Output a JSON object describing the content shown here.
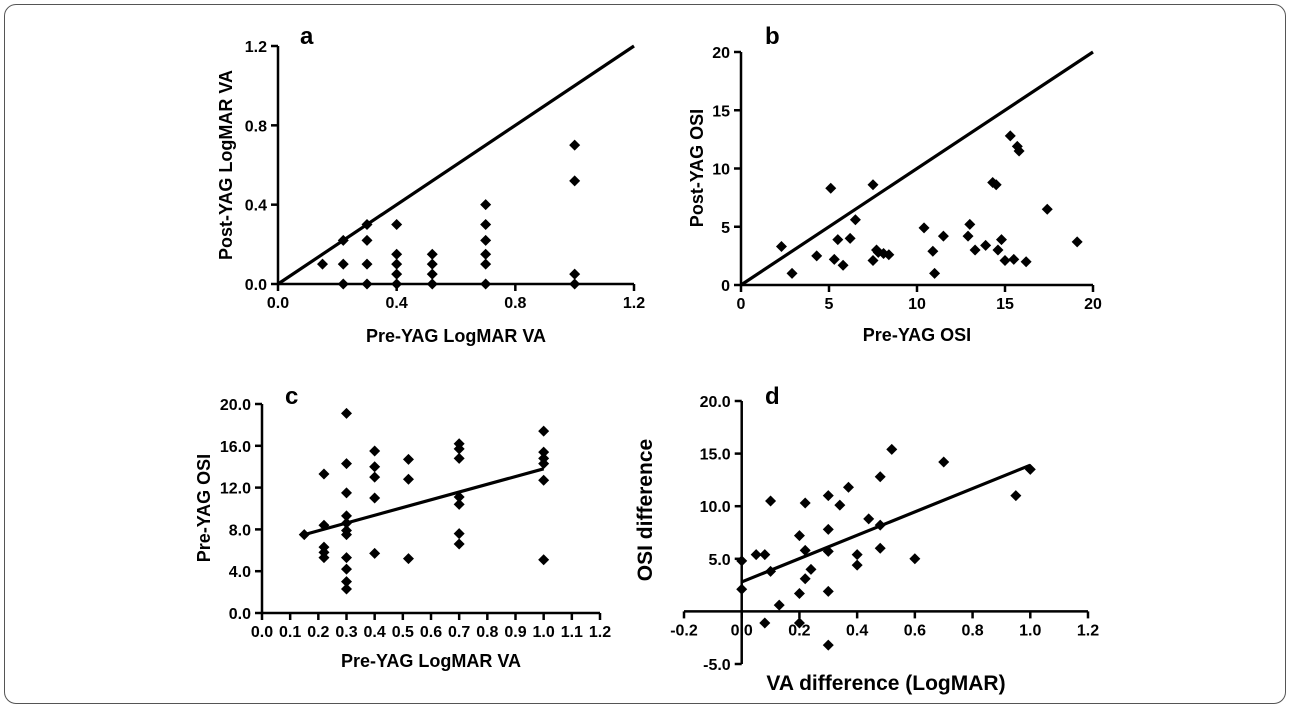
{
  "chart_data": [
    {
      "panel": "a",
      "type": "scatter",
      "xlabel": "Pre-YAG LogMAR VA",
      "ylabel": "Post-YAG LogMAR VA",
      "xlim": [
        0,
        1.2
      ],
      "ylim": [
        0,
        1.2
      ],
      "xticks": [
        "0.0",
        "0.4",
        "0.8",
        "1.2"
      ],
      "yticks": [
        "0.0",
        "0.4",
        "0.8",
        "1.2"
      ],
      "line": [
        [
          0,
          0
        ],
        [
          1.2,
          1.2
        ]
      ],
      "points": [
        [
          0.15,
          0.1
        ],
        [
          0.22,
          0.22
        ],
        [
          0.22,
          0.1
        ],
        [
          0.22,
          0
        ],
        [
          0.3,
          0.3
        ],
        [
          0.3,
          0.22
        ],
        [
          0.3,
          0.1
        ],
        [
          0.3,
          0
        ],
        [
          0.4,
          0.3
        ],
        [
          0.4,
          0.15
        ],
        [
          0.4,
          0.1
        ],
        [
          0.4,
          0.05
        ],
        [
          0.4,
          0
        ],
        [
          0.52,
          0.15
        ],
        [
          0.52,
          0.1
        ],
        [
          0.52,
          0.05
        ],
        [
          0.52,
          0
        ],
        [
          0.7,
          0.4
        ],
        [
          0.7,
          0.3
        ],
        [
          0.7,
          0.22
        ],
        [
          0.7,
          0.15
        ],
        [
          0.7,
          0.1
        ],
        [
          0.7,
          0
        ],
        [
          1.0,
          0.7
        ],
        [
          1.0,
          0.52
        ],
        [
          1.0,
          0.05
        ],
        [
          1.0,
          0
        ]
      ]
    },
    {
      "panel": "b",
      "type": "scatter",
      "xlabel": "Pre-YAG OSI",
      "ylabel": "Post-YAG OSI",
      "xlim": [
        0,
        20
      ],
      "ylim": [
        0,
        20
      ],
      "xticks": [
        "0",
        "5",
        "10",
        "15",
        "20"
      ],
      "yticks": [
        "0",
        "5",
        "10",
        "15",
        "20"
      ],
      "line": [
        [
          0,
          0
        ],
        [
          20,
          20
        ]
      ],
      "points": [
        [
          2.3,
          3.3
        ],
        [
          2.9,
          1.0
        ],
        [
          4.3,
          2.5
        ],
        [
          5.1,
          8.3
        ],
        [
          5.3,
          2.2
        ],
        [
          5.5,
          3.9
        ],
        [
          5.8,
          1.7
        ],
        [
          6.2,
          4.0
        ],
        [
          6.5,
          5.6
        ],
        [
          7.5,
          8.6
        ],
        [
          7.5,
          2.1
        ],
        [
          7.7,
          3.0
        ],
        [
          7.8,
          2.8
        ],
        [
          8.1,
          2.7
        ],
        [
          8.4,
          2.6
        ],
        [
          10.4,
          4.9
        ],
        [
          10.9,
          2.9
        ],
        [
          11.0,
          1.0
        ],
        [
          11.5,
          4.2
        ],
        [
          12.9,
          4.2
        ],
        [
          13.0,
          5.2
        ],
        [
          13.3,
          3.0
        ],
        [
          13.9,
          3.4
        ],
        [
          14.3,
          8.8
        ],
        [
          14.5,
          8.6
        ],
        [
          14.6,
          3.0
        ],
        [
          14.8,
          3.9
        ],
        [
          15.0,
          2.1
        ],
        [
          15.3,
          12.8
        ],
        [
          15.5,
          2.2
        ],
        [
          15.7,
          11.9
        ],
        [
          15.8,
          11.5
        ],
        [
          16.2,
          2.0
        ],
        [
          17.4,
          6.5
        ],
        [
          19.1,
          3.7
        ]
      ]
    },
    {
      "panel": "c",
      "type": "scatter",
      "xlabel": "Pre-YAG LogMAR VA",
      "ylabel": "Pre-YAG OSI",
      "xlim": [
        0,
        1.2
      ],
      "ylim": [
        0,
        20
      ],
      "xticks": [
        "0.0",
        "0.1",
        "0.2",
        "0.3",
        "0.4",
        "0.5",
        "0.6",
        "0.7",
        "0.8",
        "0.9",
        "1.0",
        "1.1",
        "1.2"
      ],
      "yticks": [
        "0.0",
        "4.0",
        "8.0",
        "12.0",
        "16.0",
        "20.0"
      ],
      "line": [
        [
          0.15,
          7.5
        ],
        [
          1.0,
          13.8
        ]
      ],
      "points": [
        [
          0.15,
          7.5
        ],
        [
          0.22,
          13.3
        ],
        [
          0.22,
          8.4
        ],
        [
          0.22,
          6.3
        ],
        [
          0.22,
          5.8
        ],
        [
          0.22,
          5.3
        ],
        [
          0.3,
          19.1
        ],
        [
          0.3,
          14.3
        ],
        [
          0.3,
          11.5
        ],
        [
          0.3,
          9.3
        ],
        [
          0.3,
          8.6
        ],
        [
          0.3,
          7.9
        ],
        [
          0.3,
          7.5
        ],
        [
          0.3,
          5.3
        ],
        [
          0.3,
          4.2
        ],
        [
          0.3,
          3.0
        ],
        [
          0.3,
          2.3
        ],
        [
          0.4,
          15.5
        ],
        [
          0.4,
          14.0
        ],
        [
          0.4,
          13.0
        ],
        [
          0.4,
          11.0
        ],
        [
          0.4,
          5.7
        ],
        [
          0.52,
          14.7
        ],
        [
          0.52,
          12.8
        ],
        [
          0.52,
          5.2
        ],
        [
          0.7,
          16.2
        ],
        [
          0.7,
          15.7
        ],
        [
          0.7,
          14.8
        ],
        [
          0.7,
          11.1
        ],
        [
          0.7,
          10.4
        ],
        [
          0.7,
          7.6
        ],
        [
          0.7,
          6.6
        ],
        [
          1.0,
          17.4
        ],
        [
          1.0,
          15.4
        ],
        [
          1.0,
          14.8
        ],
        [
          1.0,
          14.3
        ],
        [
          1.0,
          12.7
        ],
        [
          1.0,
          5.1
        ]
      ]
    },
    {
      "panel": "d",
      "type": "scatter",
      "xlabel": "VA difference (LogMAR)",
      "ylabel": "OSI difference",
      "xlim": [
        -0.2,
        1.2
      ],
      "ylim": [
        -5,
        20
      ],
      "xticks": [
        "-0.2",
        "0.0",
        "0.2",
        "0.4",
        "0.6",
        "0.8",
        "1.0",
        "1.2"
      ],
      "yticks": [
        "-5.0",
        "5.0",
        "10.0",
        "15.0",
        "20.0"
      ],
      "line": [
        [
          0,
          2.8
        ],
        [
          1.0,
          13.9
        ]
      ],
      "points": [
        [
          0,
          4.8
        ],
        [
          0,
          2.1
        ],
        [
          0.05,
          5.4
        ],
        [
          0.08,
          5.4
        ],
        [
          0.08,
          -1.1
        ],
        [
          0.1,
          3.8
        ],
        [
          0.1,
          10.5
        ],
        [
          0.13,
          0.6
        ],
        [
          0.2,
          7.2
        ],
        [
          0.2,
          1.7
        ],
        [
          0.2,
          -1.1
        ],
        [
          0.22,
          10.3
        ],
        [
          0.22,
          5.8
        ],
        [
          0.22,
          3.1
        ],
        [
          0.24,
          4.0
        ],
        [
          0.3,
          11.0
        ],
        [
          0.3,
          7.8
        ],
        [
          0.3,
          5.7
        ],
        [
          0.3,
          1.9
        ],
        [
          0.3,
          -3.2
        ],
        [
          0.34,
          10.1
        ],
        [
          0.37,
          11.8
        ],
        [
          0.4,
          5.4
        ],
        [
          0.4,
          4.4
        ],
        [
          0.44,
          8.8
        ],
        [
          0.48,
          12.8
        ],
        [
          0.48,
          8.2
        ],
        [
          0.48,
          6.0
        ],
        [
          0.52,
          15.4
        ],
        [
          0.6,
          5.0
        ],
        [
          0.7,
          14.2
        ],
        [
          0.95,
          11.0
        ],
        [
          1.0,
          13.5
        ]
      ]
    }
  ]
}
